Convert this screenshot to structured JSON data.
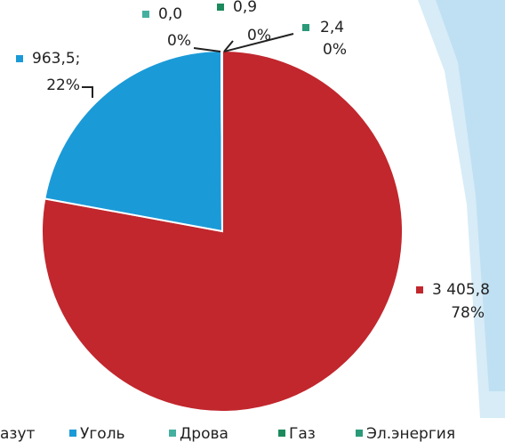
{
  "chart_data": {
    "type": "pie",
    "categories": [
      "азут",
      "Уголь",
      "Дрова",
      "Газ",
      "Эл.энергия"
    ],
    "values": [
      3405.8,
      963.5,
      0.0,
      0.9,
      2.4
    ],
    "value_labels": [
      "3 405,8",
      "963,5;",
      "0,0",
      "0,9",
      "2,4"
    ],
    "percent_labels": [
      "78%",
      "22%",
      "0%",
      "0%",
      "0%"
    ],
    "colors": [
      "#c1272d",
      "#1b9ad8",
      "#45b0a0",
      "#1c8a5c",
      "#2a9a78"
    ],
    "legend": "bottom"
  }
}
